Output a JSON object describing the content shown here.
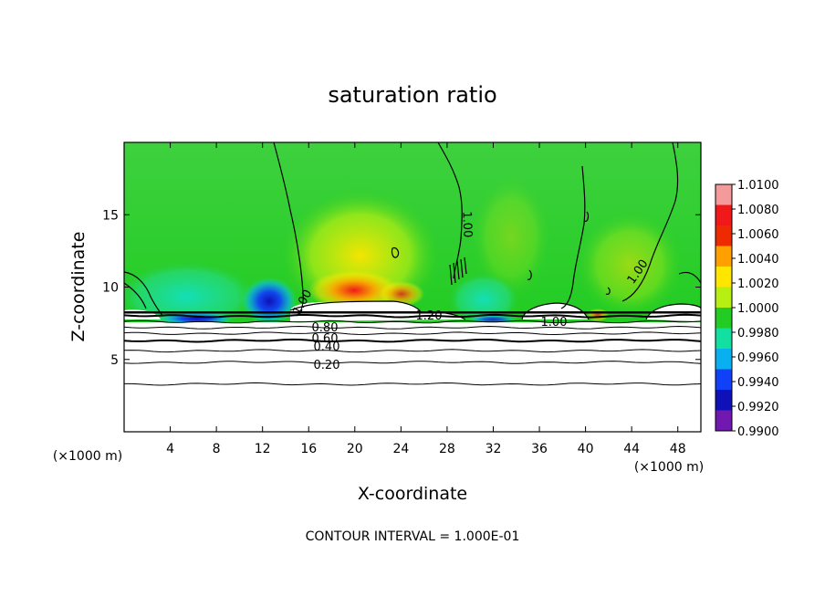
{
  "chart_data": {
    "type": "heatmap",
    "title": "saturation ratio",
    "xlabel": "X-coordinate",
    "ylabel": "Z-coordinate",
    "x_unit_label": "(×1000 m)",
    "y_unit_label": "(×1000 m)",
    "xlim": [
      0,
      50
    ],
    "ylim": [
      0,
      20
    ],
    "x_ticks": [
      4,
      8,
      12,
      16,
      20,
      24,
      28,
      32,
      36,
      40,
      44,
      48
    ],
    "y_ticks": [
      5,
      10,
      15
    ],
    "footer": "CONTOUR INTERVAL = 1.000E-01",
    "colorbar": {
      "ticks": [
        "1.0100",
        "1.0080",
        "1.0060",
        "1.0040",
        "1.0020",
        "1.0000",
        "0.9980",
        "0.9960",
        "0.9940",
        "0.9920",
        "0.9900"
      ],
      "colors": [
        "#f59a9a",
        "#f01818",
        "#ee2a00",
        "#ffa000",
        "#ffe600",
        "#b8ef12",
        "#22cc22",
        "#12e0a0",
        "#08b0f0",
        "#1040f8",
        "#1010b8",
        "#7018b0"
      ]
    },
    "contour_labels": [
      "1.00",
      "1.00",
      "1.00",
      "1.00",
      "1.20",
      "0.80",
      "0.60",
      "0.40",
      "0.20"
    ],
    "contour_levels_below": [
      {
        "z": 8.0,
        "label": "0.80"
      },
      {
        "z": 7.6,
        "label": "0.60"
      },
      {
        "z": 7.2,
        "label": ""
      },
      {
        "z": 6.8,
        "label": "0.40"
      },
      {
        "z": 6.3,
        "label": ""
      },
      {
        "z": 5.6,
        "label": ""
      },
      {
        "z": 4.8,
        "label": "0.20"
      },
      {
        "z": 3.3,
        "label": ""
      }
    ]
  }
}
